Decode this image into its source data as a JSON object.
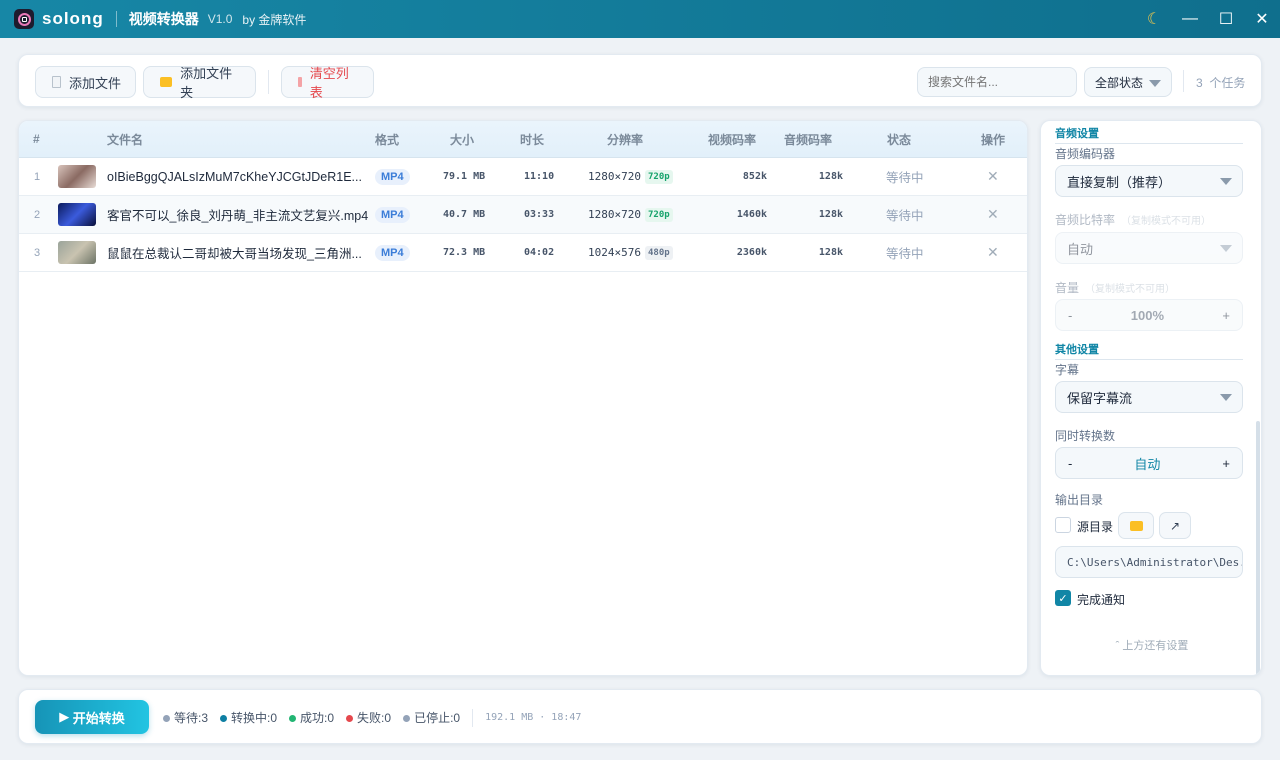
{
  "titlebar": {
    "brand": "solong",
    "app_name": "视频转换器",
    "version": "V1.0",
    "by": "by 金牌软件"
  },
  "toolbar": {
    "add_file": "添加文件",
    "add_folder": "添加文件夹",
    "clear_list": "清空列表",
    "search_placeholder": "搜索文件名...",
    "status_filter": "全部状态",
    "task_count": "3  个任务"
  },
  "table": {
    "headers": {
      "index": "#",
      "name": "文件名",
      "format": "格式",
      "size": "大小",
      "duration": "时长",
      "resolution": "分辨率",
      "vbitrate": "视频码率",
      "abitrate": "音频码率",
      "status": "状态",
      "action": "操作"
    },
    "rows": [
      {
        "index": "1",
        "name": "oIBieBggQJALsIzMuM7cKheYJCGtJDeR1E...",
        "format": "MP4",
        "size": "79.1 MB",
        "duration": "11:10",
        "resolution": "1280×720",
        "res_tag": "720p",
        "vbitrate": "852k",
        "abitrate": "128k",
        "status": "等待中"
      },
      {
        "index": "2",
        "name": "客官不可以_徐良_刘丹萌_非主流文艺复兴.mp4",
        "format": "MP4",
        "size": "40.7 MB",
        "duration": "03:33",
        "resolution": "1280×720",
        "res_tag": "720p",
        "vbitrate": "1460k",
        "abitrate": "128k",
        "status": "等待中"
      },
      {
        "index": "3",
        "name": "鼠鼠在总裁认二哥却被大哥当场发现_三角洲...",
        "format": "MP4",
        "size": "72.3 MB",
        "duration": "04:02",
        "resolution": "1024×576",
        "res_tag": "480p",
        "vbitrate": "2360k",
        "abitrate": "128k",
        "status": "等待中"
      }
    ]
  },
  "settings": {
    "audio_section": "音频设置",
    "audio_codec_label": "音频编码器",
    "audio_codec": "直接复制（推荐）",
    "audio_bitrate_label": "音频比特率",
    "audio_bitrate_note": "（复制模式不可用）",
    "audio_bitrate": "自动",
    "volume_label": "音量",
    "volume_note": "（复制模式不可用）",
    "volume": "100%",
    "other_section": "其他设置",
    "subtitle_label": "字幕",
    "subtitle": "保留字幕流",
    "concurrency_label": "同时转换数",
    "concurrency": "自动",
    "minus": "-",
    "plus": "+",
    "output_label": "输出目录",
    "source_dir": "源目录",
    "source_dir_checked": false,
    "output_path": "C:\\Users\\Administrator\\Des...",
    "notify": "完成通知",
    "notify_checked": true,
    "more_hint": "上方还有设置"
  },
  "bottom": {
    "start": "开始转换",
    "waiting": "等待:3",
    "converting": "转换中:0",
    "success": "成功:0",
    "failed": "失败:0",
    "stopped": "已停止:0",
    "summary": "192.1 MB · 18:47"
  },
  "colors": {
    "accent": "#1186a6",
    "waiting": "#94a3b8",
    "converting": "#0e7fa3",
    "success": "#22b573",
    "failed": "#e5484d",
    "stopped": "#94a3b8"
  }
}
